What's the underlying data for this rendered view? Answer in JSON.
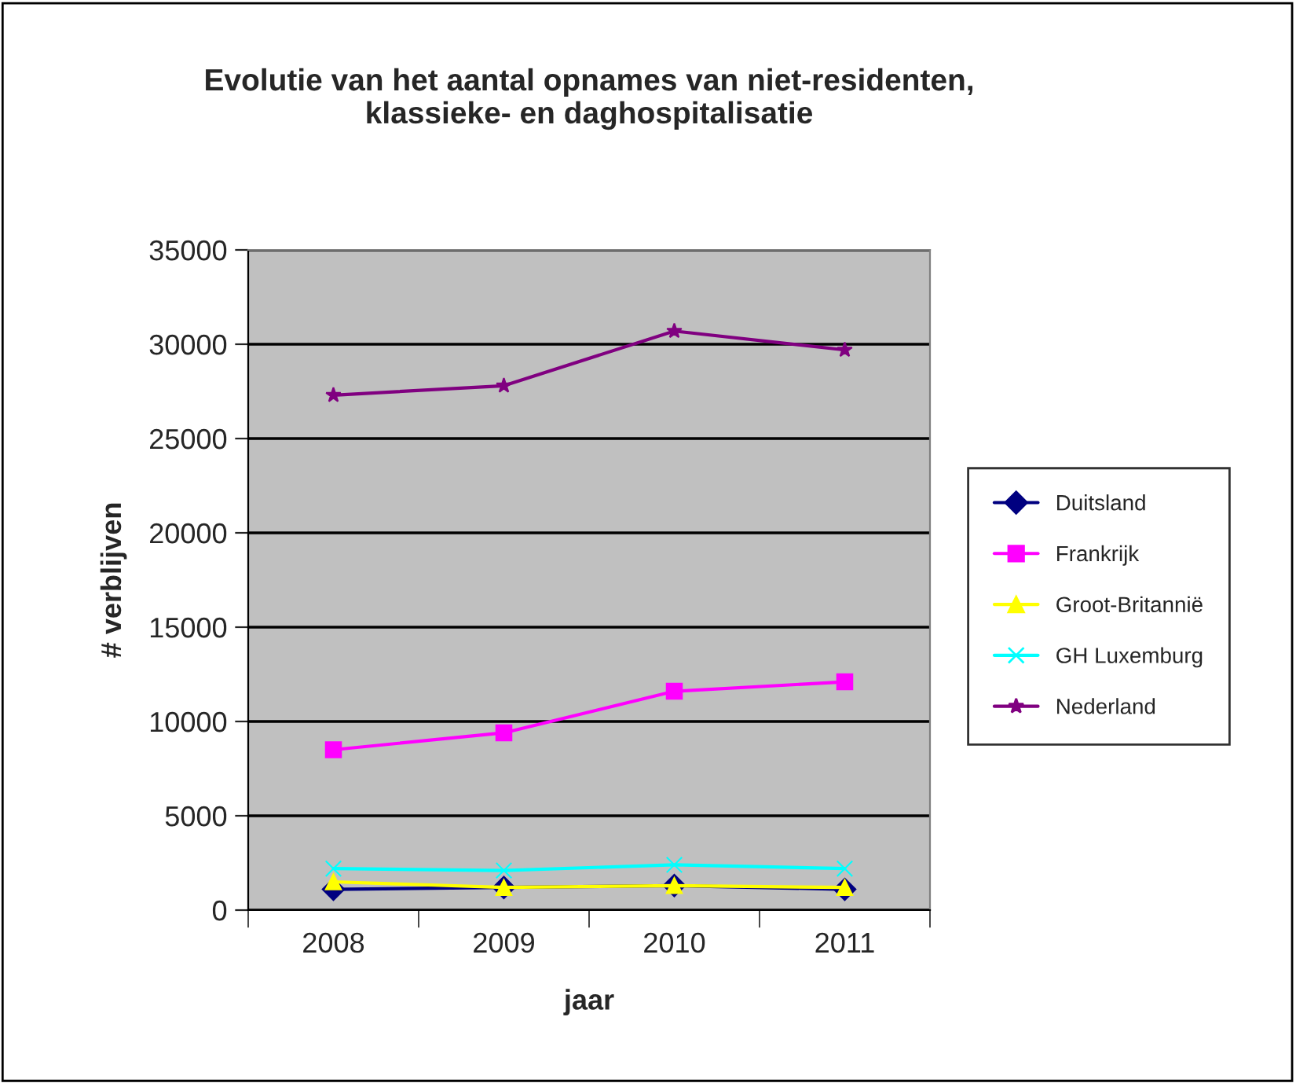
{
  "chart_data": {
    "type": "line",
    "title": "Evolutie van het aantal opnames van niet-residenten,\nklassieke- en daghospitalisatie",
    "xlabel": "jaar",
    "ylabel": "# verblijven",
    "categories": [
      "2008",
      "2009",
      "2010",
      "2011"
    ],
    "series": [
      {
        "name": "Duitsland",
        "color": "#000080",
        "marker": "diamond",
        "values": [
          1100,
          1200,
          1300,
          1100
        ]
      },
      {
        "name": "Frankrijk",
        "color": "#ff00ff",
        "marker": "square",
        "values": [
          8500,
          9400,
          11600,
          12100
        ]
      },
      {
        "name": "Groot-Britannië",
        "color": "#ffff00",
        "marker": "triangle",
        "values": [
          1500,
          1200,
          1300,
          1200
        ]
      },
      {
        "name": "GH Luxemburg",
        "color": "#00ffff",
        "marker": "cross",
        "values": [
          2200,
          2100,
          2400,
          2200
        ]
      },
      {
        "name": "Nederland",
        "color": "#800080",
        "marker": "star",
        "values": [
          27300,
          27800,
          30700,
          29700
        ]
      }
    ],
    "ylim": [
      0,
      35000
    ],
    "yticks": [
      0,
      5000,
      10000,
      15000,
      20000,
      25000,
      30000,
      35000
    ],
    "grid": "y",
    "legend": "right"
  }
}
